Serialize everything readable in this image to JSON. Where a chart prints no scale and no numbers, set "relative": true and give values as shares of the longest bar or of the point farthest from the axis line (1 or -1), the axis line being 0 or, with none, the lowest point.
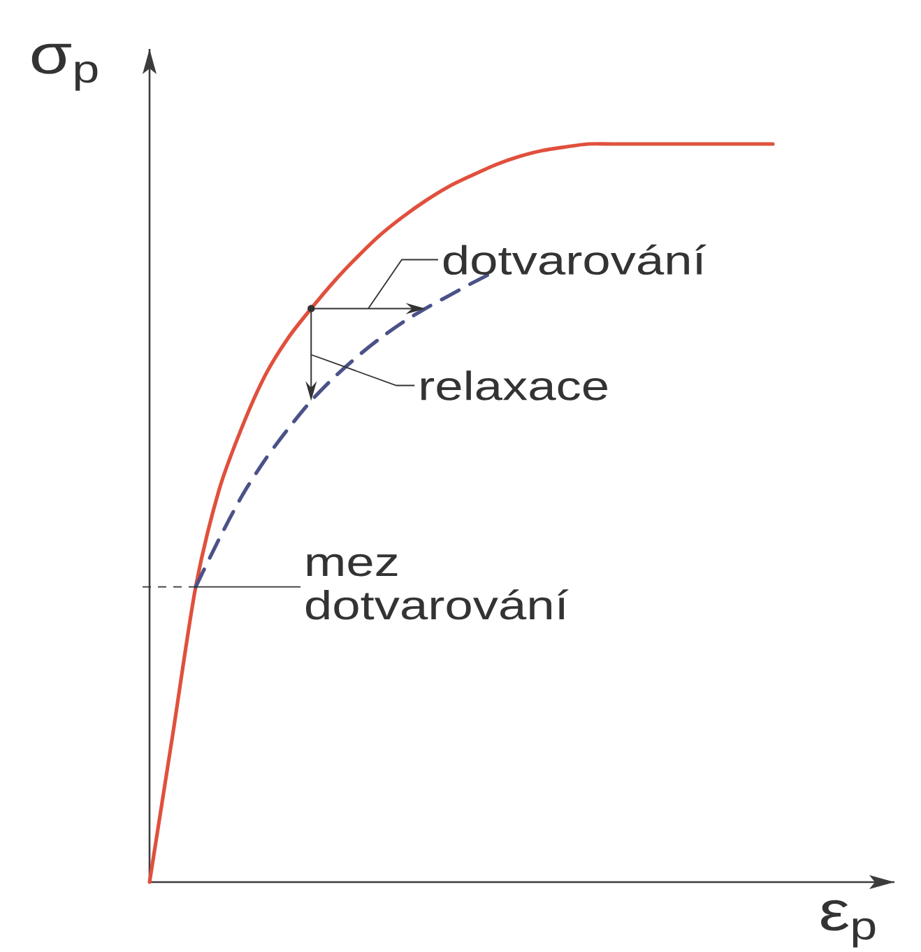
{
  "chart_data": {
    "type": "line",
    "relative": true,
    "marker": "none",
    "xlabel": "ε$_{p}$",
    "ylabel": "σ$_{p}$",
    "categories": [
      null,
      null,
      null,
      null,
      null,
      null,
      null,
      null,
      null,
      null,
      null,
      null,
      null,
      null,
      null,
      null,
      null,
      null,
      null,
      null,
      null,
      null,
      null,
      null,
      null,
      null,
      null,
      null
    ],
    "series": [
      {
        "color": "#e0503c",
        "line_style": "solid",
        "values": [
          0,
          0.199,
          0.4,
          0.53,
          0.616,
          0.686,
          0.737,
          0.777,
          0.814,
          0.847,
          0.877,
          0.902,
          0.924,
          0.943,
          0.958,
          0.972,
          0.983,
          0.991,
          0.996,
          1,
          1,
          1,
          1,
          1,
          1,
          1,
          1,
          1
        ]
      },
      {
        "color": "#4b5288",
        "line_style": "dashed",
        "values": [
          null,
          null,
          0.4,
          0.464,
          0.523,
          0.572,
          0.614,
          0.652,
          0.684,
          0.712,
          0.737,
          0.759,
          0.778,
          0.795,
          0.812,
          0.828,
          null,
          null,
          null,
          null,
          null,
          null,
          null,
          null,
          null,
          null,
          null,
          null
        ]
      }
    ],
    "ref_lines": [
      {
        "axis": "y",
        "value": 0.4,
        "label": "mez dotvarování",
        "line_style": "dashed",
        "color": "#333333"
      }
    ],
    "annotations": [
      "dotvarování",
      "relaxace"
    ]
  }
}
